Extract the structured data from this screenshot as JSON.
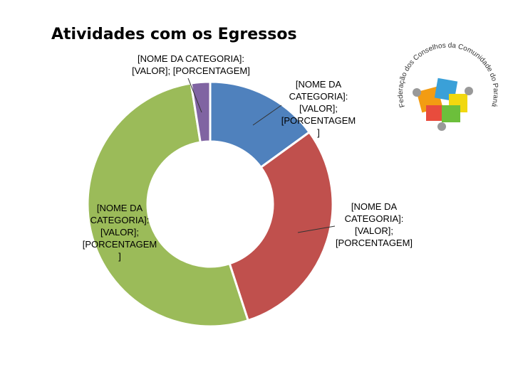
{
  "chart_data": {
    "type": "donut",
    "title": "Atividades com os Egressos",
    "values": [
      15,
      30,
      52.5,
      2.5
    ],
    "value_labels": [
      "[NOME DA CATEGORIA]: [VALOR]; [PORCENTAGEM]",
      "[NOME DA CATEGORIA]: [VALOR]; [PORCENTAGEM]",
      "[NOME DA CATEGORIA]: [VALOR]; [PORCENTAGEM]",
      "[NOME DA CATEGORIA]: [VALOR]; [PORCENTAGEM]"
    ],
    "colors": [
      "#4f81bd",
      "#c0504d",
      "#9bbb59",
      "#8064a2"
    ]
  },
  "logo": {
    "text": "Federação dos Conselhos da Comunidade do Paraná"
  }
}
